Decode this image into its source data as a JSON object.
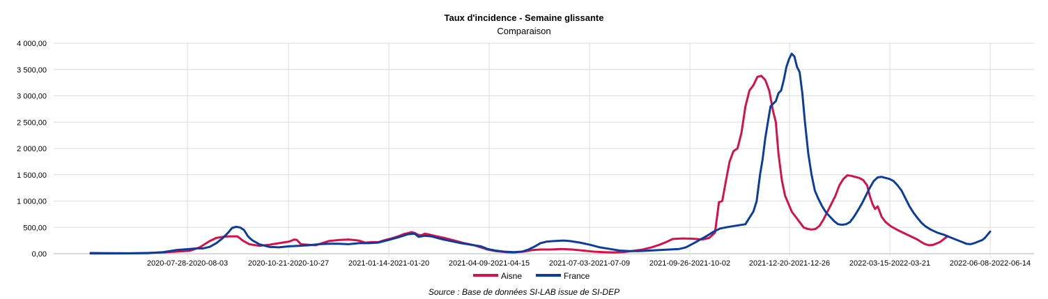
{
  "chart_data": {
    "type": "line",
    "title": "Taux d'incidence - Semaine glissante",
    "subtitle": "Comparaison",
    "source": "Source : Base de données SI-LAB issue de SI-DEP",
    "xlabel": "",
    "ylabel": "",
    "ylim": [
      0,
      4000
    ],
    "y_ticks": [
      0,
      500,
      1000,
      1500,
      2000,
      2500,
      3000,
      3500,
      4000
    ],
    "y_tick_labels": [
      "0,00",
      "500,00",
      "1 000,00",
      "1 500,00",
      "2 000,00",
      "2 500,00",
      "3 000,00",
      "3 500,00",
      "4 000,00"
    ],
    "x_tick_labels": [
      "2020-07-28-2020-08-03",
      "2020-10-21-2020-10-27",
      "2021-01-14-2021-01-20",
      "2021-04-09-2021-04-15",
      "2021-07-03-2021-07-09",
      "2021-09-26-2021-10-02",
      "2021-12-20-2021-12-26",
      "2022-03-15-2022-03-21",
      "2022-06-08-2022-06-14"
    ],
    "x_tick_index": [
      87,
      174,
      261,
      348,
      435,
      522,
      609,
      696,
      783
    ],
    "x_points": 780,
    "grid": true,
    "legend_position": "bottom",
    "series": [
      {
        "name": "Aisne",
        "color": "#d6114a",
        "points": [
          [
            0,
            15
          ],
          [
            20,
            12
          ],
          [
            40,
            10
          ],
          [
            60,
            8
          ],
          [
            87,
            15
          ],
          [
            110,
            25
          ],
          [
            130,
            40
          ],
          [
            150,
            55
          ],
          [
            165,
            120
          ],
          [
            180,
            240
          ],
          [
            190,
            300
          ],
          [
            200,
            320
          ],
          [
            210,
            330
          ],
          [
            222,
            330
          ],
          [
            230,
            250
          ],
          [
            240,
            180
          ],
          [
            255,
            150
          ],
          [
            270,
            170
          ],
          [
            285,
            200
          ],
          [
            300,
            230
          ],
          [
            308,
            270
          ],
          [
            312,
            260
          ],
          [
            318,
            180
          ],
          [
            330,
            170
          ],
          [
            340,
            160
          ],
          [
            350,
            200
          ],
          [
            360,
            240
          ],
          [
            375,
            260
          ],
          [
            390,
            270
          ],
          [
            405,
            250
          ],
          [
            415,
            210
          ],
          [
            425,
            220
          ],
          [
            435,
            220
          ],
          [
            445,
            260
          ],
          [
            455,
            290
          ],
          [
            465,
            330
          ],
          [
            475,
            380
          ],
          [
            480,
            390
          ],
          [
            485,
            410
          ],
          [
            490,
            395
          ],
          [
            495,
            360
          ],
          [
            500,
            350
          ],
          [
            505,
            380
          ],
          [
            510,
            370
          ],
          [
            520,
            340
          ],
          [
            535,
            300
          ],
          [
            550,
            250
          ],
          [
            565,
            200
          ],
          [
            580,
            160
          ],
          [
            590,
            120
          ],
          [
            600,
            80
          ],
          [
            612,
            50
          ],
          [
            628,
            30
          ],
          [
            640,
            25
          ],
          [
            655,
            40
          ],
          [
            668,
            70
          ],
          [
            680,
            80
          ],
          [
            695,
            80
          ],
          [
            712,
            90
          ],
          [
            728,
            80
          ],
          [
            745,
            60
          ],
          [
            760,
            40
          ],
          [
            775,
            30
          ],
          [
            790,
            25
          ],
          [
            805,
            30
          ],
          [
            818,
            50
          ],
          [
            835,
            80
          ],
          [
            848,
            120
          ],
          [
            860,
            170
          ],
          [
            870,
            220
          ],
          [
            880,
            280
          ],
          [
            895,
            290
          ],
          [
            910,
            285
          ],
          [
            925,
            270
          ],
          [
            935,
            300
          ],
          [
            944,
            400
          ],
          [
            950,
            980
          ],
          [
            955,
            1000
          ],
          [
            960,
            1350
          ],
          [
            966,
            1750
          ],
          [
            972,
            1950
          ],
          [
            978,
            2000
          ],
          [
            984,
            2300
          ],
          [
            990,
            2800
          ],
          [
            996,
            3100
          ],
          [
            1002,
            3200
          ],
          [
            1008,
            3360
          ],
          [
            1014,
            3380
          ],
          [
            1020,
            3300
          ],
          [
            1026,
            3100
          ],
          [
            1032,
            2700
          ],
          [
            1036,
            2500
          ],
          [
            1040,
            1900
          ],
          [
            1045,
            1400
          ],
          [
            1050,
            1100
          ],
          [
            1055,
            950
          ],
          [
            1060,
            800
          ],
          [
            1066,
            700
          ],
          [
            1072,
            600
          ],
          [
            1078,
            500
          ],
          [
            1084,
            470
          ],
          [
            1090,
            460
          ],
          [
            1096,
            470
          ],
          [
            1102,
            530
          ],
          [
            1108,
            650
          ],
          [
            1114,
            800
          ],
          [
            1120,
            950
          ],
          [
            1126,
            1100
          ],
          [
            1132,
            1300
          ],
          [
            1138,
            1420
          ],
          [
            1144,
            1490
          ],
          [
            1150,
            1480
          ],
          [
            1156,
            1460
          ],
          [
            1162,
            1440
          ],
          [
            1168,
            1400
          ],
          [
            1174,
            1300
          ],
          [
            1178,
            1100
          ],
          [
            1182,
            950
          ],
          [
            1186,
            850
          ],
          [
            1190,
            900
          ],
          [
            1193,
            800
          ],
          [
            1196,
            700
          ],
          [
            1202,
            600
          ],
          [
            1210,
            520
          ],
          [
            1220,
            450
          ],
          [
            1230,
            390
          ],
          [
            1240,
            330
          ],
          [
            1250,
            270
          ],
          [
            1256,
            220
          ],
          [
            1262,
            180
          ],
          [
            1268,
            160
          ],
          [
            1274,
            170
          ],
          [
            1280,
            200
          ],
          [
            1284,
            220
          ],
          [
            1288,
            260
          ],
          [
            1292,
            300
          ],
          [
            1296,
            330
          ]
        ]
      },
      {
        "name": "France",
        "color": "#0a3d9c",
        "points": [
          [
            0,
            5
          ],
          [
            40,
            5
          ],
          [
            87,
            10
          ],
          [
            110,
            30
          ],
          [
            130,
            70
          ],
          [
            150,
            90
          ],
          [
            160,
            100
          ],
          [
            170,
            100
          ],
          [
            180,
            130
          ],
          [
            190,
            200
          ],
          [
            200,
            300
          ],
          [
            208,
            400
          ],
          [
            214,
            490
          ],
          [
            220,
            510
          ],
          [
            226,
            500
          ],
          [
            232,
            450
          ],
          [
            238,
            330
          ],
          [
            244,
            260
          ],
          [
            255,
            180
          ],
          [
            270,
            130
          ],
          [
            285,
            120
          ],
          [
            300,
            140
          ],
          [
            315,
            150
          ],
          [
            330,
            160
          ],
          [
            345,
            180
          ],
          [
            360,
            190
          ],
          [
            375,
            190
          ],
          [
            390,
            180
          ],
          [
            405,
            200
          ],
          [
            420,
            200
          ],
          [
            435,
            210
          ],
          [
            450,
            260
          ],
          [
            465,
            310
          ],
          [
            480,
            370
          ],
          [
            490,
            380
          ],
          [
            496,
            320
          ],
          [
            505,
            340
          ],
          [
            515,
            330
          ],
          [
            530,
            280
          ],
          [
            545,
            240
          ],
          [
            560,
            200
          ],
          [
            575,
            170
          ],
          [
            590,
            140
          ],
          [
            600,
            90
          ],
          [
            612,
            60
          ],
          [
            625,
            40
          ],
          [
            640,
            30
          ],
          [
            652,
            40
          ],
          [
            662,
            80
          ],
          [
            672,
            140
          ],
          [
            680,
            200
          ],
          [
            690,
            230
          ],
          [
            700,
            240
          ],
          [
            715,
            250
          ],
          [
            725,
            240
          ],
          [
            740,
            210
          ],
          [
            755,
            170
          ],
          [
            770,
            120
          ],
          [
            785,
            90
          ],
          [
            800,
            60
          ],
          [
            815,
            50
          ],
          [
            830,
            50
          ],
          [
            845,
            60
          ],
          [
            860,
            70
          ],
          [
            875,
            80
          ],
          [
            890,
            90
          ],
          [
            900,
            120
          ],
          [
            912,
            200
          ],
          [
            922,
            270
          ],
          [
            932,
            340
          ],
          [
            942,
            420
          ],
          [
            952,
            480
          ],
          [
            960,
            500
          ],
          [
            970,
            520
          ],
          [
            980,
            540
          ],
          [
            990,
            560
          ],
          [
            997,
            700
          ],
          [
            1002,
            800
          ],
          [
            1007,
            1000
          ],
          [
            1012,
            1500
          ],
          [
            1016,
            1800
          ],
          [
            1020,
            2200
          ],
          [
            1024,
            2500
          ],
          [
            1028,
            2800
          ],
          [
            1032,
            2850
          ],
          [
            1036,
            2900
          ],
          [
            1040,
            3050
          ],
          [
            1044,
            3100
          ],
          [
            1048,
            3300
          ],
          [
            1052,
            3550
          ],
          [
            1056,
            3700
          ],
          [
            1060,
            3800
          ],
          [
            1064,
            3750
          ],
          [
            1068,
            3550
          ],
          [
            1072,
            3450
          ],
          [
            1076,
            3050
          ],
          [
            1080,
            2500
          ],
          [
            1085,
            1900
          ],
          [
            1090,
            1500
          ],
          [
            1095,
            1200
          ],
          [
            1100,
            1050
          ],
          [
            1106,
            900
          ],
          [
            1112,
            780
          ],
          [
            1118,
            700
          ],
          [
            1124,
            620
          ],
          [
            1130,
            560
          ],
          [
            1136,
            550
          ],
          [
            1142,
            560
          ],
          [
            1148,
            600
          ],
          [
            1154,
            700
          ],
          [
            1160,
            820
          ],
          [
            1166,
            950
          ],
          [
            1172,
            1100
          ],
          [
            1178,
            1250
          ],
          [
            1184,
            1380
          ],
          [
            1190,
            1450
          ],
          [
            1196,
            1460
          ],
          [
            1202,
            1440
          ],
          [
            1208,
            1420
          ],
          [
            1214,
            1380
          ],
          [
            1220,
            1300
          ],
          [
            1226,
            1200
          ],
          [
            1232,
            1050
          ],
          [
            1238,
            900
          ],
          [
            1244,
            780
          ],
          [
            1250,
            680
          ],
          [
            1256,
            590
          ],
          [
            1262,
            520
          ],
          [
            1270,
            460
          ],
          [
            1280,
            400
          ],
          [
            1290,
            360
          ],
          [
            1300,
            310
          ],
          [
            1310,
            260
          ],
          [
            1318,
            220
          ],
          [
            1324,
            190
          ],
          [
            1330,
            180
          ],
          [
            1336,
            200
          ],
          [
            1342,
            230
          ],
          [
            1348,
            260
          ],
          [
            1352,
            300
          ],
          [
            1356,
            360
          ],
          [
            1360,
            420
          ]
        ]
      }
    ]
  }
}
